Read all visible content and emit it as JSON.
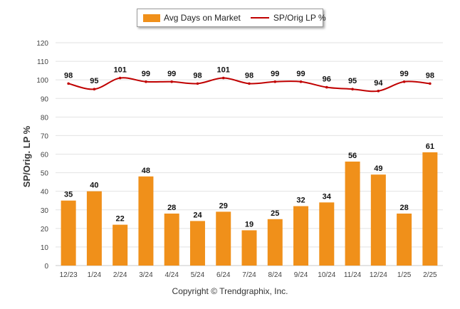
{
  "chart_data": {
    "type": "bar",
    "categories": [
      "12/23",
      "1/24",
      "2/24",
      "3/24",
      "4/24",
      "5/24",
      "6/24",
      "7/24",
      "8/24",
      "9/24",
      "10/24",
      "11/24",
      "12/24",
      "1/25",
      "2/25"
    ],
    "series": [
      {
        "name": "Avg Days on Market",
        "type": "bar",
        "color": "#f0901a",
        "values": [
          35,
          40,
          22,
          48,
          28,
          24,
          29,
          19,
          25,
          32,
          34,
          56,
          49,
          28,
          61
        ]
      },
      {
        "name": "SP/Orig LP %",
        "type": "line",
        "color": "#c00000",
        "values": [
          98,
          95,
          101,
          99,
          99,
          98,
          101,
          98,
          99,
          99,
          96,
          95,
          94,
          99,
          98
        ]
      }
    ],
    "ylabel": "SP/Orig. LP %",
    "ylim": [
      0,
      120
    ],
    "yticks": [
      0,
      10,
      20,
      30,
      40,
      50,
      60,
      70,
      80,
      90,
      100,
      110,
      120
    ],
    "grid": true,
    "legend_position": "top-center"
  },
  "footer": "Copyright © Trendgraphix, Inc."
}
